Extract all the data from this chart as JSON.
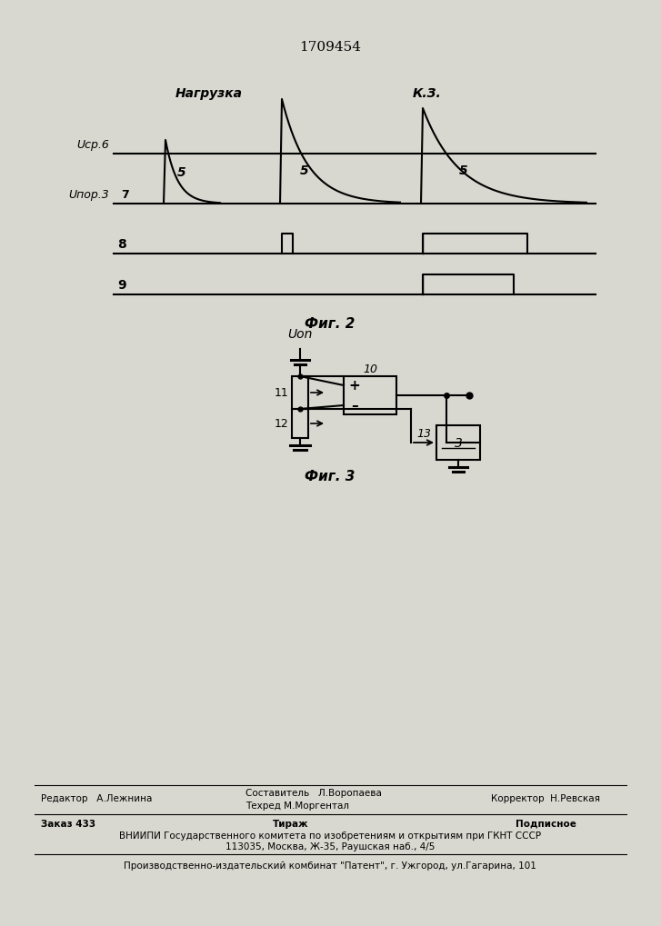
{
  "title": "1709454",
  "fig2_caption": "Фиг. 2",
  "fig3_caption": "Фиг. 3",
  "background_color": "#d8d8d0",
  "text_color": "#000000",
  "label_nagruzka": "Нагрузка",
  "label_kz": "К.З.",
  "label_ucr6": "Uср.6",
  "label_upor3": "Uпор.3",
  "label_7": "7",
  "label_8": "8",
  "label_9": "9",
  "label_uon": "Uon",
  "label_10": "10",
  "label_11": "11",
  "label_12": "12",
  "label_13": "13",
  "label_3": "3",
  "label_5": "5",
  "footer_line1_left": "Редактор   А.Лежнина",
  "footer_line1_mid": "Составитель   Л.Воропаева",
  "footer_line1_right": "Корректор  Н.Ревская",
  "footer_line2_mid": "Техред М.Моргентал",
  "footer_line3_left": "Заказ 433",
  "footer_line3_mid": "Тираж",
  "footer_line3_right": "Подписное",
  "footer_line4": "ВНИИПИ Государственного комитета по изобретениям и открытиям при ГКНТ СССР",
  "footer_line5": "113035, Москва, Ж-35, Раушская наб., 4/5",
  "footer_line6": "Производственно-издательский комбинат \"Патент\", г. Ужгород, ул.Гагарина, 101"
}
